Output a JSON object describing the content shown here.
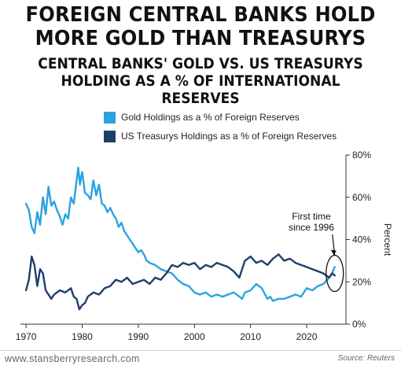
{
  "title_lines": [
    "FOREIGN CENTRAL BANKS HOLD",
    "MORE GOLD THAN TREASURYS"
  ],
  "subtitle_lines": [
    "CENTRAL BANKS' GOLD VS. US TREASURYS",
    "HOLDING AS A % OF INTERNATIONAL RESERVES"
  ],
  "footer": {
    "website": "www.stansberryresearch.com",
    "source": "Source: Reuters"
  },
  "colors": {
    "gold": "#2aa3df",
    "treasury": "#1f3f6b",
    "axis": "#333333"
  },
  "chart_data": {
    "type": "line",
    "title": "",
    "xlabel": "",
    "ylabel": "Percent",
    "xlim": [
      1969,
      2027
    ],
    "ylim": [
      0,
      80
    ],
    "x_ticks": [
      1970,
      1980,
      1990,
      2000,
      2010,
      2020
    ],
    "y_ticks": [
      0,
      20,
      40,
      60,
      80
    ],
    "y_tick_labels": [
      "0%",
      "20%",
      "40%",
      "60%",
      "80%"
    ],
    "y_axis_side": "right",
    "grid": false,
    "legend_position": "top-left",
    "annotation": {
      "lines": [
        "First time",
        "since 1996"
      ],
      "x": 2025,
      "y": 24
    },
    "series": [
      {
        "name": "Gold Holdings as a % of Foreign Reserves",
        "x": [
          1970,
          1970.5,
          1971,
          1971.5,
          1972,
          1972.5,
          1973,
          1973.5,
          1974,
          1974.5,
          1975,
          1975.5,
          1976,
          1976.5,
          1977,
          1977.5,
          1978,
          1978.5,
          1979,
          1979.3,
          1979.6,
          1980,
          1980.5,
          1981,
          1981.5,
          1982,
          1982.5,
          1983,
          1983.5,
          1984,
          1984.5,
          1985,
          1985.5,
          1986,
          1986.5,
          1987,
          1987.5,
          1988,
          1988.5,
          1989,
          1989.5,
          1990,
          1990.5,
          1991,
          1991.5,
          1992,
          1993,
          1994,
          1995,
          1996,
          1997,
          1998,
          1999,
          2000,
          2001,
          2002,
          2003,
          2004,
          2005,
          2006,
          2007,
          2008,
          2008.5,
          2009,
          2010,
          2011,
          2011.5,
          2012,
          2013,
          2013.5,
          2014,
          2015,
          2016,
          2017,
          2018,
          2019,
          2020,
          2021,
          2022,
          2023,
          2024,
          2024.5,
          2025
        ],
        "values": [
          57,
          54,
          46,
          43,
          53,
          47,
          60,
          52,
          65,
          56,
          58,
          54,
          51,
          47,
          52,
          50,
          60,
          57,
          68,
          74,
          66,
          72,
          62,
          61,
          59,
          68,
          61,
          66,
          57,
          56,
          53,
          55,
          52,
          50,
          46,
          48,
          44,
          42,
          40,
          38,
          36,
          34,
          35,
          33,
          30,
          29,
          28,
          26,
          25,
          24,
          21,
          19,
          18,
          15,
          14,
          15,
          13,
          14,
          13,
          14,
          15,
          13,
          12,
          15,
          16,
          19,
          18,
          17,
          12,
          13,
          11,
          12,
          12,
          13,
          14,
          13,
          17,
          16,
          18,
          19,
          22,
          24,
          27
        ]
      },
      {
        "name": "US Treasurys Holdings as a % of Foreign Reserves",
        "x": [
          1970,
          1970.5,
          1971,
          1971.5,
          1972,
          1972.5,
          1973,
          1973.5,
          1974,
          1974.5,
          1975,
          1976,
          1977,
          1978,
          1978.5,
          1979,
          1979.5,
          1980,
          1980.5,
          1981,
          1982,
          1983,
          1984,
          1985,
          1986,
          1987,
          1988,
          1989,
          1990,
          1991,
          1992,
          1993,
          1994,
          1995,
          1996,
          1997,
          1998,
          1999,
          2000,
          2001,
          2002,
          2003,
          2004,
          2005,
          2006,
          2007,
          2008,
          2009,
          2010,
          2011,
          2012,
          2013,
          2014,
          2015,
          2016,
          2017,
          2018,
          2019,
          2020,
          2021,
          2022,
          2023,
          2024,
          2024.5,
          2025
        ],
        "values": [
          16,
          21,
          32,
          28,
          18,
          26,
          24,
          16,
          14,
          12,
          14,
          16,
          15,
          17,
          13,
          12,
          7,
          9,
          10,
          13,
          15,
          14,
          17,
          18,
          21,
          20,
          22,
          19,
          20,
          21,
          19,
          22,
          21,
          24,
          28,
          27,
          29,
          28,
          29,
          26,
          28,
          27,
          29,
          28,
          27,
          25,
          22,
          30,
          32,
          29,
          30,
          28,
          31,
          33,
          30,
          31,
          29,
          28,
          27,
          26,
          25,
          24,
          22,
          24,
          23
        ]
      }
    ]
  }
}
